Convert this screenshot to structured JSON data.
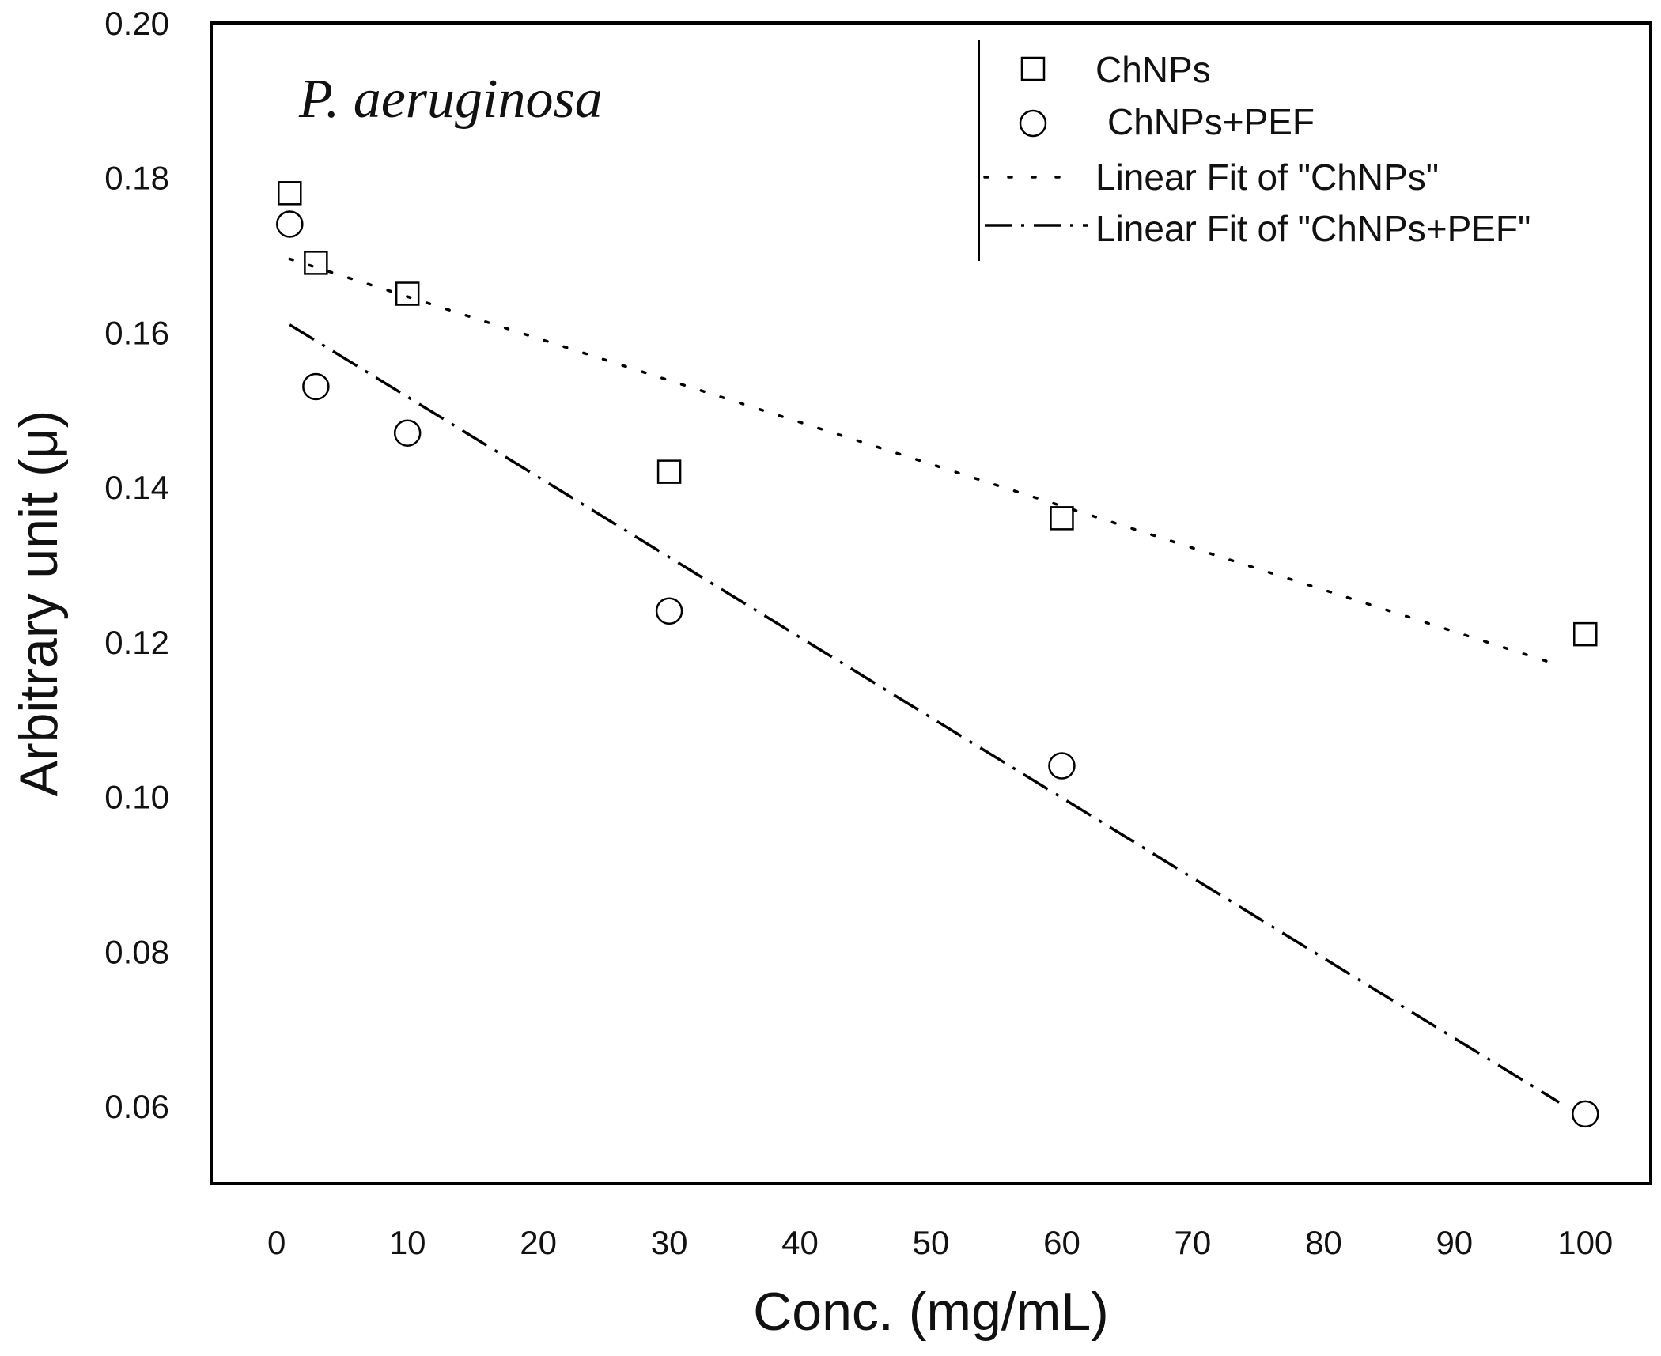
{
  "chart_data": {
    "type": "scatter",
    "title": "",
    "annotation": "P. aeruginosa",
    "xlabel": "Conc. (mg/mL)",
    "ylabel": "Arbitrary unit (μ)",
    "xlim": [
      -5,
      105
    ],
    "ylim": [
      0.05,
      0.2
    ],
    "xticks": [
      0,
      10,
      20,
      30,
      40,
      50,
      60,
      70,
      80,
      90,
      100
    ],
    "xtick_labels": [
      "0",
      "10",
      "20",
      "30",
      "40",
      "50",
      "60",
      "70",
      "80",
      "90",
      "100"
    ],
    "yticks": [
      0.06,
      0.08,
      0.1,
      0.12,
      0.14,
      0.16,
      0.18,
      0.2
    ],
    "ytick_labels": [
      "0.06",
      "0.08",
      "0.10",
      "0.12",
      "0.14",
      "0.16",
      "0.18",
      "0.20"
    ],
    "grid": false,
    "legend_position": "top-right",
    "series": [
      {
        "name": "ChNPs",
        "marker": "square",
        "x": [
          1,
          3,
          10,
          30,
          60,
          100
        ],
        "y": [
          0.178,
          0.169,
          0.165,
          0.142,
          0.136,
          0.121
        ]
      },
      {
        "name": "ChNPs+PEF",
        "marker": "circle",
        "x": [
          1,
          3,
          10,
          30,
          60,
          100
        ],
        "y": [
          0.174,
          0.153,
          0.147,
          0.124,
          0.104,
          0.059
        ]
      }
    ],
    "fits": [
      {
        "name": "Linear Fit of \"ChNPs\"",
        "style": "dotted",
        "x": [
          1,
          98
        ],
        "y": [
          0.1695,
          0.117
        ]
      },
      {
        "name": "Linear Fit of \"ChNPs+PEF\"",
        "style": "dash-dot",
        "x": [
          1,
          98
        ],
        "y": [
          0.161,
          0.0605
        ]
      }
    ]
  }
}
